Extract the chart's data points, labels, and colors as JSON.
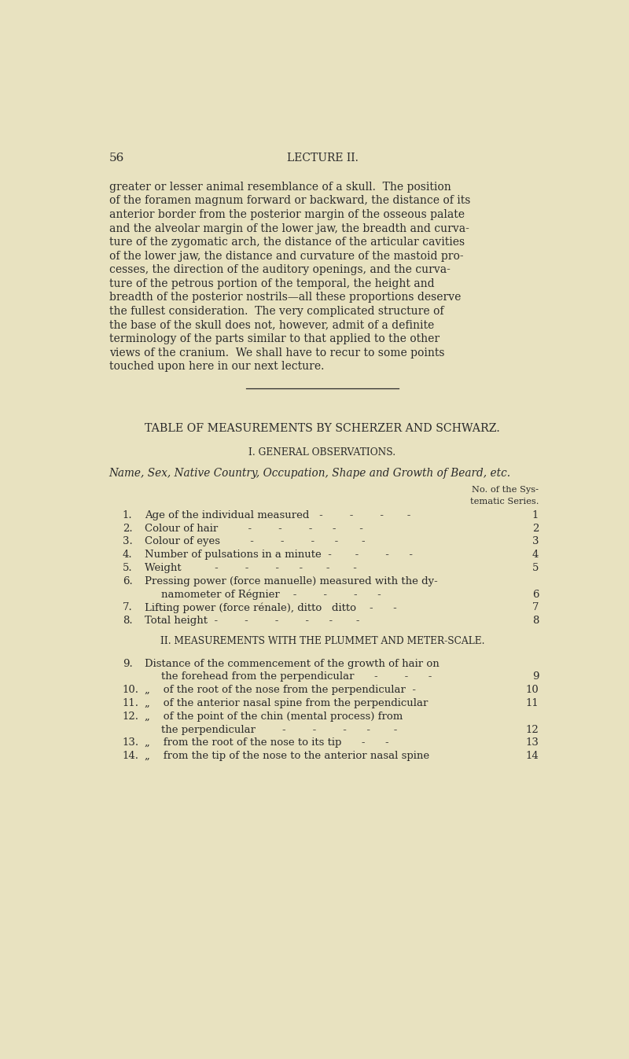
{
  "bg_color": "#e8e2c0",
  "text_color": "#2a2a2a",
  "page_number": "56",
  "header": "LECTURE II.",
  "paragraph_lines": [
    "greater or lesser animal resemblance of a skull.  The position",
    "of the foramen magnum forward or backward, the distance of its",
    "anterior border from the posterior margin of the osseous palate",
    "and the alveolar margin of the lower jaw, the breadth and curva-",
    "ture of the zygomatic arch, the distance of the articular cavities",
    "of the lower jaw, the distance and curvature of the mastoid pro-",
    "cesses, the direction of the auditory openings, and the curva-",
    "ture of the petrous portion of the temporal, the height and",
    "breadth of the posterior nostrils—all these proportions deserve",
    "the fullest consideration.  The very complicated structure of",
    "the base of the skull does not, however, admit of a definite",
    "terminology of the parts similar to that applied to the other",
    "views of the cranium.  We shall have to recur to some points",
    "touched upon here in our next lecture."
  ],
  "table_title": "TABLE OF MEASUREMENTS BY SCHERZER AND SCHWARZ.",
  "section1_title": "I. GENERAL OBSERVATIONS.",
  "section1_italic": "Name, Sex, Native Country, Occupation, Shape and Growth of Beard, etc.",
  "col_header_line1": "No. of the Sys-",
  "col_header_line2": "tematic Series.",
  "section1_items": [
    {
      "num": "1.",
      "text_lines": [
        "Age of the individual measured   -        -        -       -"
      ],
      "num_right": "1"
    },
    {
      "num": "2.",
      "text_lines": [
        "Colour of hair         -        -        -      -       -"
      ],
      "num_right": "2"
    },
    {
      "num": "3.",
      "text_lines": [
        "Colour of eyes         -        -        -      -       -"
      ],
      "num_right": "3"
    },
    {
      "num": "4.",
      "text_lines": [
        "Number of pulsations in a minute  -       -        -      -"
      ],
      "num_right": "4"
    },
    {
      "num": "5.",
      "text_lines": [
        "Weight          -        -        -      -       -       -"
      ],
      "num_right": "5"
    },
    {
      "num": "6.",
      "text_lines": [
        "Pressing power (force manuelle) measured with the dy-",
        "namometer of Régnier    -        -        -      -"
      ],
      "num_right": "6"
    },
    {
      "num": "7.",
      "text_lines": [
        "Lifting power (force rénale), ditto   ditto    -      -"
      ],
      "num_right": "7"
    },
    {
      "num": "8.",
      "text_lines": [
        "Total height  -        -        -        -      -       -"
      ],
      "num_right": "8"
    }
  ],
  "section2_title": "II. MEASUREMENTS WITH THE PLUMMET AND METER-SCALE.",
  "section2_items": [
    {
      "num": "9.",
      "text_lines": [
        "Distance of the commencement of the growth of hair on",
        "the forehead from the perpendicular      -        -      -"
      ],
      "num_right": "9"
    },
    {
      "num": "10.",
      "text_lines": [
        "„    of the root of the nose from the perpendicular  -"
      ],
      "num_right": "10"
    },
    {
      "num": "11.",
      "text_lines": [
        "„    of the anterior nasal spine from the perpendicular"
      ],
      "num_right": "11"
    },
    {
      "num": "12.",
      "text_lines": [
        "„    of the point of the chin (mental process) from",
        "the perpendicular        -        -        -      -       -"
      ],
      "num_right": "12"
    },
    {
      "num": "13.",
      "text_lines": [
        "„    from the root of the nose to its tip      -      -"
      ],
      "num_right": "13"
    },
    {
      "num": "14.",
      "text_lines": [
        "„    from the tip of the nose to the anterior nasal spine"
      ],
      "num_right": "14"
    }
  ]
}
